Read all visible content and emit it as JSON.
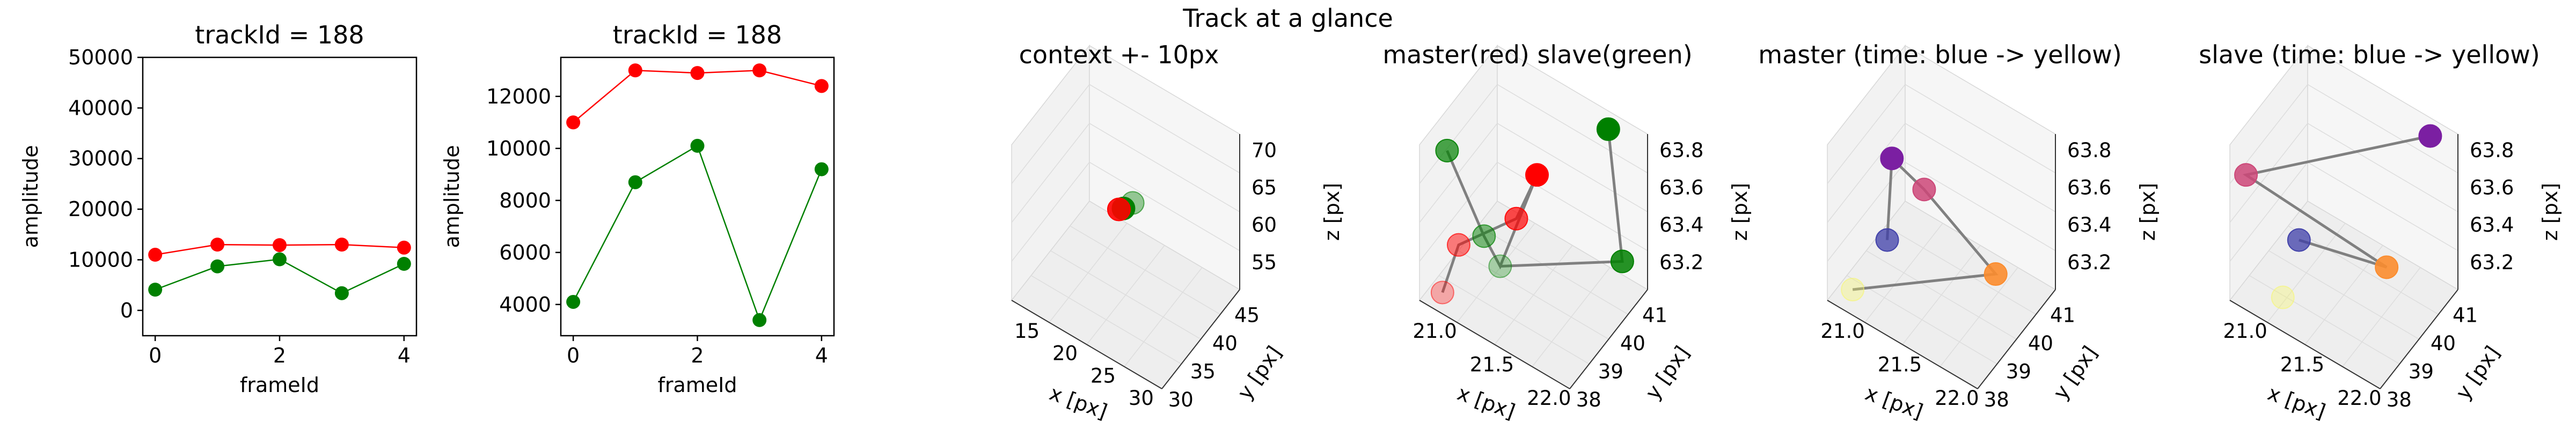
{
  "suptitle": "Track at a glance",
  "colors": {
    "master": "#ff0000",
    "slave": "#008000",
    "connector": "#808080"
  },
  "chart_data": [
    {
      "type": "line",
      "title": "trackId = 188",
      "xlabel": "frameId",
      "ylabel": "amplitude",
      "x": [
        0,
        1,
        2,
        3,
        4
      ],
      "xlim": [
        -0.2,
        4.2
      ],
      "ylim": [
        -5000,
        50000
      ],
      "xticks": [
        "0",
        "2",
        "4"
      ],
      "yticks": [
        "0",
        "10000",
        "20000",
        "30000",
        "40000",
        "50000"
      ],
      "series": [
        {
          "color": "#ff0000",
          "values": [
            11000,
            13000,
            12900,
            13000,
            12400
          ]
        },
        {
          "color": "#008000",
          "values": [
            4100,
            8700,
            10100,
            3400,
            9200
          ]
        }
      ]
    },
    {
      "type": "line",
      "title": "trackId = 188",
      "xlabel": "frameId",
      "ylabel": "amplitude",
      "x": [
        0,
        1,
        2,
        3,
        4
      ],
      "xlim": [
        -0.2,
        4.2
      ],
      "ylim": [
        2800,
        13500
      ],
      "xticks": [
        "0",
        "2",
        "4"
      ],
      "yticks": [
        "4000",
        "6000",
        "8000",
        "10000",
        "12000"
      ],
      "series": [
        {
          "color": "#ff0000",
          "values": [
            11000,
            13000,
            12900,
            13000,
            12400
          ]
        },
        {
          "color": "#008000",
          "values": [
            4100,
            8700,
            10100,
            3400,
            9200
          ]
        }
      ]
    },
    {
      "type": "scatter",
      "title": "context +- 10px",
      "xlabel": "x [px]",
      "ylabel": "y [px]",
      "zlabel": "z [px]",
      "xticks": [
        "15",
        "20",
        "25",
        "30"
      ],
      "yticks": [
        "30",
        "35",
        "40",
        "45"
      ],
      "zticks": [
        "55",
        "60",
        "65",
        "70"
      ],
      "xlim": [
        12,
        32
      ],
      "ylim": [
        28,
        48
      ],
      "zlim": [
        53,
        73
      ],
      "points": [
        {
          "x": 21.9,
          "y": 40.0,
          "z": 63.5,
          "color": "#008000",
          "alpha": 0.4
        },
        {
          "x": 21.4,
          "y": 38.6,
          "z": 63.4,
          "color": "#008000",
          "alpha": 1.0
        },
        {
          "x": 21.0,
          "y": 38.2,
          "z": 63.3,
          "color": "#ff0000",
          "alpha": 0.9
        }
      ]
    },
    {
      "type": "scatter",
      "title": "master(red) slave(green)",
      "xlabel": "x [px]",
      "ylabel": "y [px]",
      "zlabel": "z [px]",
      "xticks": [
        "21.0",
        "21.5",
        "22.0"
      ],
      "yticks": [
        "38",
        "39",
        "40",
        "41"
      ],
      "zticks": [
        "63.2",
        "63.4",
        "63.6",
        "63.8"
      ],
      "xlim": [
        20.9,
        22.2
      ],
      "ylim": [
        37.8,
        41.2
      ],
      "zlim": [
        63.1,
        63.9
      ],
      "points": [
        {
          "x": 21.0,
          "y": 38.3,
          "z": 63.1,
          "color": "#ff0000",
          "alpha": 0.3
        },
        {
          "x": 21.1,
          "y": 38.5,
          "z": 63.35,
          "color": "#ff0000",
          "alpha": 0.5
        },
        {
          "x": 21.5,
          "y": 39.0,
          "z": 63.55,
          "color": "#ff0000",
          "alpha": 0.7
        },
        {
          "x": 21.6,
          "y": 39.4,
          "z": 63.75,
          "color": "#ff0000",
          "alpha": 1.0
        },
        {
          "x": 21.4,
          "y": 38.8,
          "z": 63.3,
          "color": "#008000",
          "alpha": 0.3
        },
        {
          "x": 21.3,
          "y": 38.6,
          "z": 63.45,
          "color": "#008000",
          "alpha": 0.5
        },
        {
          "x": 21.0,
          "y": 38.5,
          "z": 63.8,
          "color": "#008000",
          "alpha": 0.7
        },
        {
          "x": 22.1,
          "y": 40.6,
          "z": 63.3,
          "color": "#008000",
          "alpha": 0.85
        },
        {
          "x": 21.9,
          "y": 41.0,
          "z": 63.85,
          "color": "#008000",
          "alpha": 1.0
        }
      ],
      "master_path": [
        0,
        1,
        2,
        3,
        4,
        5,
        6
      ],
      "slave_path": [
        4,
        7,
        8
      ]
    },
    {
      "type": "scatter",
      "title": "master (time: blue -> yellow)",
      "xlabel": "x [px]",
      "ylabel": "y [px]",
      "zlabel": "z [px]",
      "xticks": [
        "21.0",
        "21.5",
        "22.0"
      ],
      "yticks": [
        "38",
        "39",
        "40",
        "41"
      ],
      "zticks": [
        "63.2",
        "63.4",
        "63.6",
        "63.8"
      ],
      "xlim": [
        20.9,
        22.2
      ],
      "ylim": [
        37.8,
        41.2
      ],
      "zlim": [
        63.1,
        63.9
      ],
      "points": [
        {
          "x": 21.0,
          "y": 38.4,
          "z": 63.1,
          "color": "#f7f765",
          "alpha": 0.35
        },
        {
          "x": 21.2,
          "y": 38.9,
          "z": 63.35,
          "color": "#3d3da8",
          "alpha": 0.75
        },
        {
          "x": 21.3,
          "y": 38.6,
          "z": 63.85,
          "color": "#7b1fa2",
          "alpha": 1.0
        },
        {
          "x": 21.5,
          "y": 39.0,
          "z": 63.7,
          "color": "#cc4778",
          "alpha": 0.85
        },
        {
          "x": 22.0,
          "y": 39.6,
          "z": 63.35,
          "color": "#fb8c2e",
          "alpha": 0.9
        }
      ],
      "path": [
        0,
        4,
        3,
        2,
        1
      ]
    },
    {
      "type": "scatter",
      "title": "slave (time: blue -> yellow)",
      "xlabel": "x [px]",
      "ylabel": "y [px]",
      "zlabel": "z [px]",
      "xticks": [
        "21.0",
        "21.5",
        "22.0"
      ],
      "yticks": [
        "38",
        "39",
        "40",
        "41"
      ],
      "zticks": [
        "63.2",
        "63.4",
        "63.6",
        "63.8"
      ],
      "xlim": [
        20.9,
        22.2
      ],
      "ylim": [
        37.8,
        41.2
      ],
      "zlim": [
        63.1,
        63.9
      ],
      "points": [
        {
          "x": 21.2,
          "y": 38.6,
          "z": 63.1,
          "color": "#f7f765",
          "alpha": 0.35
        },
        {
          "x": 21.3,
          "y": 38.8,
          "z": 63.4,
          "color": "#3d3da8",
          "alpha": 0.75
        },
        {
          "x": 21.9,
          "y": 39.6,
          "z": 63.35,
          "color": "#fb8c2e",
          "alpha": 0.9
        },
        {
          "x": 21.0,
          "y": 38.0,
          "z": 63.75,
          "color": "#cc4778",
          "alpha": 0.85
        },
        {
          "x": 22.0,
          "y": 41.0,
          "z": 63.85,
          "color": "#7b1fa2",
          "alpha": 1.0
        }
      ],
      "path": [
        1,
        2,
        3,
        4
      ]
    }
  ]
}
